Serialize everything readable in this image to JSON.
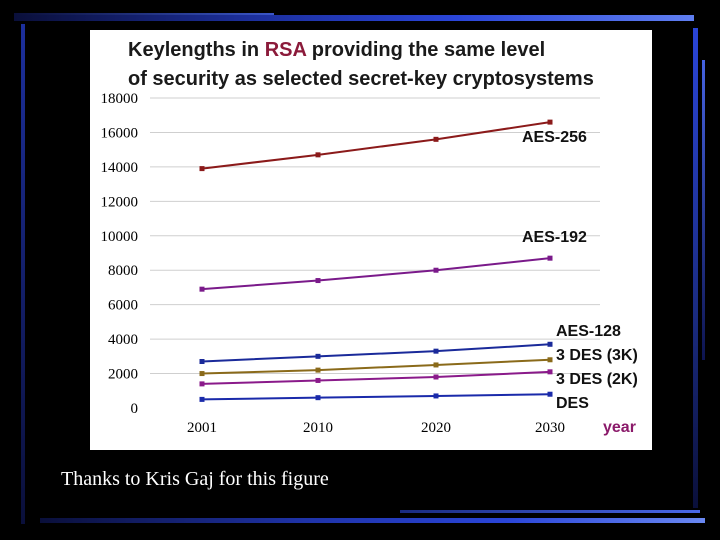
{
  "caption": "Thanks to Kris Gaj for this figure",
  "chart_data": {
    "type": "line",
    "title_line1_pre": "Keylengths in ",
    "title_line1_accent": "RSA",
    "title_line1_post": " providing the same level",
    "title_line2": "of security as selected secret-key cryptosystems",
    "title_accent_color": "#8b1a3a",
    "x": [
      "2001",
      "2010",
      "2020",
      "2030"
    ],
    "xlabel": "year",
    "ylabel": "",
    "ylim": [
      0,
      18000
    ],
    "y_ticks": [
      "0",
      "2000",
      "4000",
      "6000",
      "8000",
      "10000",
      "12000",
      "14000",
      "16000",
      "18000"
    ],
    "grid": true,
    "series": [
      {
        "name": "AES-256",
        "values": [
          13900,
          14700,
          15600,
          16600
        ],
        "color": "#8b1a1a"
      },
      {
        "name": "AES-192",
        "values": [
          6900,
          7400,
          8000,
          8700
        ],
        "color": "#7a1a8a"
      },
      {
        "name": "AES-128",
        "values": [
          2700,
          3000,
          3300,
          3700
        ],
        "color": "#1a2a9a"
      },
      {
        "name": "3 DES (3K)",
        "values": [
          2000,
          2200,
          2500,
          2800
        ],
        "color": "#8a6a1a"
      },
      {
        "name": "3 DES (2K)",
        "values": [
          1400,
          1600,
          1800,
          2100
        ],
        "color": "#8a1a8a"
      },
      {
        "name": "DES",
        "values": [
          500,
          600,
          700,
          800
        ],
        "color": "#1a2aaa"
      }
    ]
  }
}
